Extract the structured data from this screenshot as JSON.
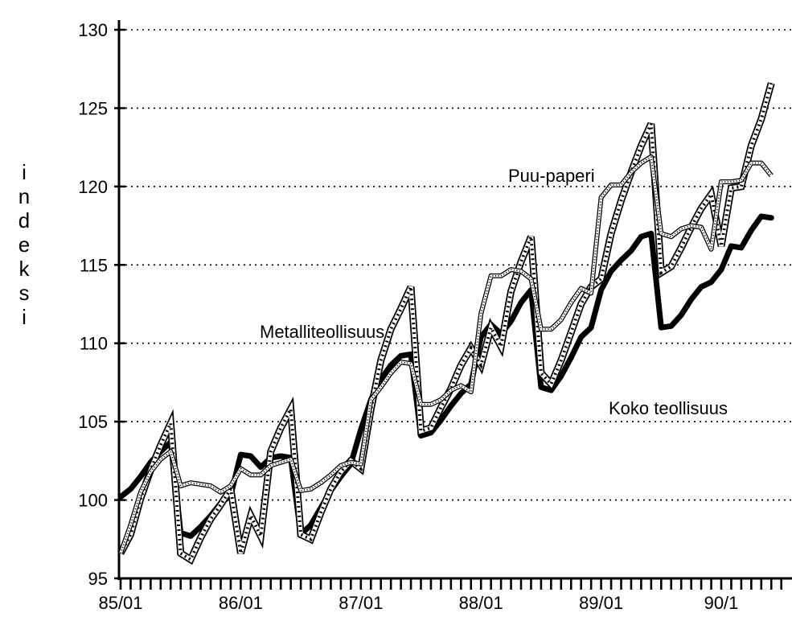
{
  "chart_data": {
    "type": "line",
    "title": "",
    "ylabel": "indeksi",
    "xlabel": "",
    "ylim": [
      95,
      130
    ],
    "xlim": [
      0,
      68
    ],
    "yticks": [
      95,
      100,
      105,
      110,
      115,
      120,
      125,
      130
    ],
    "grid": true,
    "x_tick_labels": [
      {
        "x": 0,
        "label": "85/01"
      },
      {
        "x": 12,
        "label": "86/01"
      },
      {
        "x": 24,
        "label": "87/01"
      },
      {
        "x": 36,
        "label": "88/01"
      },
      {
        "x": 48,
        "label": "89/01"
      },
      {
        "x": 60,
        "label": "90/1"
      }
    ],
    "annotations": [
      {
        "text": "Puu-paperi",
        "series": "Puu-paperi"
      },
      {
        "text": "Metalliteollisuus",
        "series": "Metalliteollisuus"
      },
      {
        "text": "Koko teollisuus",
        "series": "Koko teollisuus"
      }
    ],
    "series": [
      {
        "name": "Koko teollisuus",
        "style": "thick-black",
        "color": "#000000",
        "points": [
          [
            0,
            100.2
          ],
          [
            1,
            100.7
          ],
          [
            2,
            101.5
          ],
          [
            3,
            102.4
          ],
          [
            4,
            103.1
          ],
          [
            5,
            103.7
          ],
          [
            6,
            97.9
          ],
          [
            7,
            97.7
          ],
          [
            8,
            98.3
          ],
          [
            9,
            99.0
          ],
          [
            10,
            99.8
          ],
          [
            11,
            100.3
          ],
          [
            12,
            102.9
          ],
          [
            13,
            102.8
          ],
          [
            14,
            102.1
          ],
          [
            15,
            102.7
          ],
          [
            16,
            102.8
          ],
          [
            17,
            102.7
          ],
          [
            18,
            97.8
          ],
          [
            19,
            98.4
          ],
          [
            20,
            99.5
          ],
          [
            21,
            100.6
          ],
          [
            22,
            101.5
          ],
          [
            23,
            102.3
          ],
          [
            24,
            104.5
          ],
          [
            25,
            106.4
          ],
          [
            26,
            107.7
          ],
          [
            27,
            108.6
          ],
          [
            28,
            109.2
          ],
          [
            29,
            109.3
          ],
          [
            30,
            104.1
          ],
          [
            31,
            104.3
          ],
          [
            32,
            105.1
          ],
          [
            33,
            106.0
          ],
          [
            34,
            106.8
          ],
          [
            35,
            107.4
          ],
          [
            36,
            110.4
          ],
          [
            37,
            111.2
          ],
          [
            38,
            110.6
          ],
          [
            39,
            111.4
          ],
          [
            40,
            112.6
          ],
          [
            41,
            113.4
          ],
          [
            42,
            107.2
          ],
          [
            43,
            107.0
          ],
          [
            44,
            107.9
          ],
          [
            45,
            109.1
          ],
          [
            46,
            110.4
          ],
          [
            47,
            111.0
          ],
          [
            48,
            113.4
          ],
          [
            49,
            114.6
          ],
          [
            50,
            115.3
          ],
          [
            51,
            115.9
          ],
          [
            52,
            116.8
          ],
          [
            53,
            117.0
          ],
          [
            54,
            111.0
          ],
          [
            55,
            111.1
          ],
          [
            56,
            111.8
          ],
          [
            57,
            112.8
          ],
          [
            58,
            113.6
          ],
          [
            59,
            113.9
          ],
          [
            60,
            114.7
          ],
          [
            61,
            116.2
          ],
          [
            62,
            116.1
          ],
          [
            63,
            117.2
          ],
          [
            64,
            118.1
          ],
          [
            65,
            118.0
          ]
        ]
      },
      {
        "name": "Metalliteollisuus",
        "style": "hatched",
        "color": "#000000",
        "points": [
          [
            0,
            96.6
          ],
          [
            1,
            97.8
          ],
          [
            2,
            100.1
          ],
          [
            3,
            101.9
          ],
          [
            4,
            103.5
          ],
          [
            5,
            104.9
          ],
          [
            6,
            96.6
          ],
          [
            7,
            96.2
          ],
          [
            8,
            97.6
          ],
          [
            9,
            98.8
          ],
          [
            10,
            99.7
          ],
          [
            11,
            100.7
          ],
          [
            12,
            96.6
          ],
          [
            13,
            99.0
          ],
          [
            14,
            97.7
          ],
          [
            15,
            103.1
          ],
          [
            16,
            104.6
          ],
          [
            17,
            105.8
          ],
          [
            18,
            97.8
          ],
          [
            19,
            97.5
          ],
          [
            20,
            99.2
          ],
          [
            21,
            100.7
          ],
          [
            22,
            101.8
          ],
          [
            23,
            102.5
          ],
          [
            24,
            102.0
          ],
          [
            25,
            105.8
          ],
          [
            26,
            108.9
          ],
          [
            27,
            110.9
          ],
          [
            28,
            112.2
          ],
          [
            29,
            113.6
          ],
          [
            30,
            104.4
          ],
          [
            31,
            104.6
          ],
          [
            32,
            105.9
          ],
          [
            33,
            107.1
          ],
          [
            34,
            108.6
          ],
          [
            35,
            109.7
          ],
          [
            36,
            108.6
          ],
          [
            37,
            111.0
          ],
          [
            38,
            109.8
          ],
          [
            39,
            113.3
          ],
          [
            40,
            115.2
          ],
          [
            41,
            116.8
          ],
          [
            42,
            108.1
          ],
          [
            43,
            107.4
          ],
          [
            44,
            108.9
          ],
          [
            45,
            110.7
          ],
          [
            46,
            112.5
          ],
          [
            47,
            113.6
          ],
          [
            48,
            114.1
          ],
          [
            49,
            117.0
          ],
          [
            50,
            119.1
          ],
          [
            51,
            120.9
          ],
          [
            52,
            122.6
          ],
          [
            53,
            124.0
          ],
          [
            54,
            114.5
          ],
          [
            55,
            114.9
          ],
          [
            56,
            116.1
          ],
          [
            57,
            117.4
          ],
          [
            58,
            118.6
          ],
          [
            59,
            119.5
          ],
          [
            60,
            116.2
          ],
          [
            61,
            119.9
          ],
          [
            62,
            120.0
          ],
          [
            63,
            122.6
          ],
          [
            64,
            124.3
          ],
          [
            65,
            126.6
          ]
        ]
      },
      {
        "name": "Puu-paperi",
        "style": "dotted-double",
        "color": "#000000",
        "points": [
          [
            0,
            96.6
          ],
          [
            1,
            98.4
          ],
          [
            2,
            100.5
          ],
          [
            3,
            101.8
          ],
          [
            4,
            102.6
          ],
          [
            5,
            103.1
          ],
          [
            6,
            100.9
          ],
          [
            7,
            101.1
          ],
          [
            8,
            101.0
          ],
          [
            9,
            100.9
          ],
          [
            10,
            100.5
          ],
          [
            11,
            100.9
          ],
          [
            12,
            102.0
          ],
          [
            13,
            101.6
          ],
          [
            14,
            101.6
          ],
          [
            15,
            102.2
          ],
          [
            16,
            102.4
          ],
          [
            17,
            102.6
          ],
          [
            18,
            100.6
          ],
          [
            19,
            100.7
          ],
          [
            20,
            101.1
          ],
          [
            21,
            101.6
          ],
          [
            22,
            102.2
          ],
          [
            23,
            102.4
          ],
          [
            24,
            102.3
          ],
          [
            25,
            106.4
          ],
          [
            26,
            107.2
          ],
          [
            27,
            108.1
          ],
          [
            28,
            108.8
          ],
          [
            29,
            108.7
          ],
          [
            30,
            106.1
          ],
          [
            31,
            106.1
          ],
          [
            32,
            106.4
          ],
          [
            33,
            107.0
          ],
          [
            34,
            107.3
          ],
          [
            35,
            106.9
          ],
          [
            36,
            111.9
          ],
          [
            37,
            114.3
          ],
          [
            38,
            114.3
          ],
          [
            39,
            114.7
          ],
          [
            40,
            114.6
          ],
          [
            41,
            114.1
          ],
          [
            42,
            110.9
          ],
          [
            43,
            110.9
          ],
          [
            44,
            111.5
          ],
          [
            45,
            112.6
          ],
          [
            46,
            113.5
          ],
          [
            47,
            113.2
          ],
          [
            48,
            119.3
          ],
          [
            49,
            120.1
          ],
          [
            50,
            120.1
          ],
          [
            51,
            120.9
          ],
          [
            52,
            121.5
          ],
          [
            53,
            121.9
          ],
          [
            54,
            117.0
          ],
          [
            55,
            116.8
          ],
          [
            56,
            117.3
          ],
          [
            57,
            117.5
          ],
          [
            58,
            117.4
          ],
          [
            59,
            116.0
          ],
          [
            60,
            120.3
          ],
          [
            61,
            120.3
          ],
          [
            62,
            120.4
          ],
          [
            63,
            121.5
          ],
          [
            64,
            121.5
          ],
          [
            65,
            120.7
          ]
        ]
      }
    ]
  }
}
